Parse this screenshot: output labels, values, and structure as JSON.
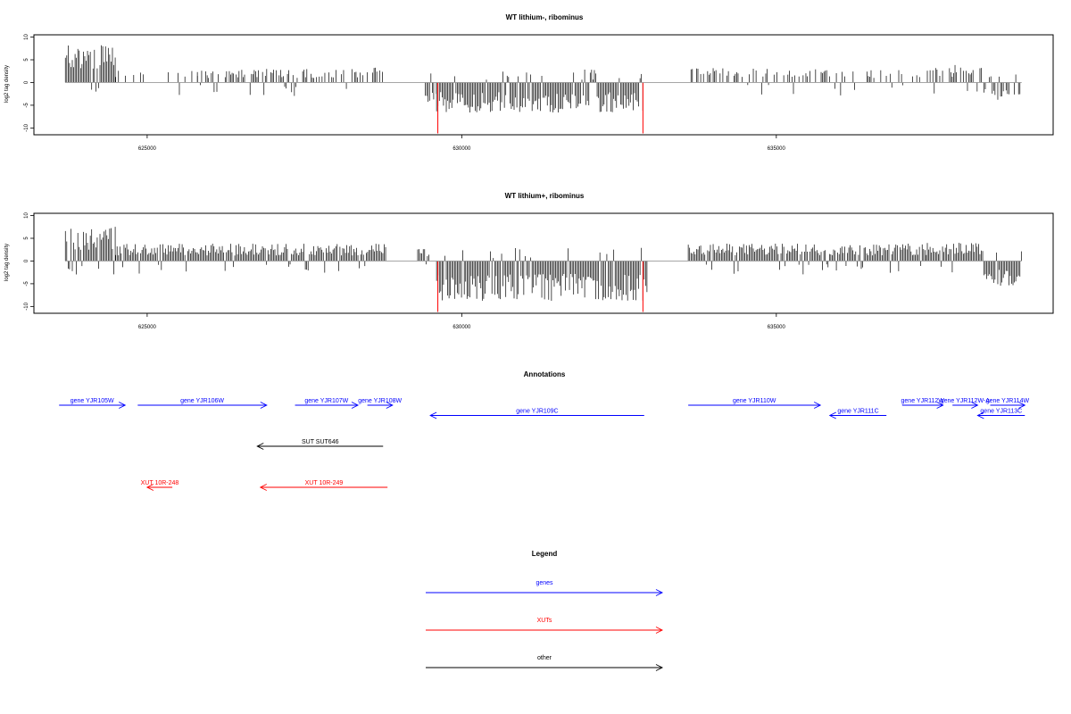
{
  "colors": {
    "genes": "#0000ff",
    "xuts": "#ff0000",
    "other": "#000000",
    "marker": "#ff0000",
    "bar": "#000000"
  },
  "chart_data": [
    {
      "type": "bar",
      "title": "WT lithium-, ribominus",
      "ylabel": "log2 tag density",
      "xlim": [
        623200,
        639400
      ],
      "ylim": [
        -11.5,
        10.5
      ],
      "yticks": [
        10,
        5,
        0,
        -5,
        -10
      ],
      "xticks": [
        625000,
        630000,
        635000
      ],
      "xtick_labels": [
        "625000",
        "630000",
        "635000"
      ],
      "ytick_labels": [
        "10",
        "5",
        "0",
        "-5",
        "-10"
      ],
      "red_markers": [
        629620,
        632880
      ],
      "coverage_regions": [
        {
          "from": 623700,
          "to": 624500,
          "level": 7.5,
          "density": 1.0
        },
        {
          "from": 624500,
          "to": 625800,
          "level": 2.5,
          "density": 0.25
        },
        {
          "from": 625800,
          "to": 628100,
          "level": 2.8,
          "density": 0.5
        },
        {
          "from": 628100,
          "to": 628800,
          "level": 3.0,
          "density": 0.4
        },
        {
          "from": 629400,
          "to": 629600,
          "level": -4.0,
          "density": 0.6
        },
        {
          "from": 629600,
          "to": 632900,
          "level": -6.0,
          "density": 1.0
        },
        {
          "from": 633600,
          "to": 636000,
          "level": 3.0,
          "density": 0.5
        },
        {
          "from": 636000,
          "to": 637400,
          "level": 2.5,
          "density": 0.3
        },
        {
          "from": 637400,
          "to": 638300,
          "level": 3.5,
          "density": 0.7
        },
        {
          "from": 638300,
          "to": 638900,
          "level": -3.5,
          "density": 0.7
        }
      ]
    },
    {
      "type": "bar",
      "title": "WT lithium+, ribominus",
      "ylabel": "log2 tag density",
      "xlim": [
        623200,
        639400
      ],
      "ylim": [
        -11.5,
        10.5
      ],
      "yticks": [
        10,
        5,
        0,
        -5,
        -10
      ],
      "xticks": [
        625000,
        630000,
        635000
      ],
      "xtick_labels": [
        "625000",
        "630000",
        "635000"
      ],
      "ytick_labels": [
        "10",
        "5",
        "0",
        "-5",
        "-10"
      ],
      "red_markers": [
        629620,
        632880
      ],
      "coverage_regions": [
        {
          "from": 623700,
          "to": 624500,
          "level": 7.0,
          "density": 1.0
        },
        {
          "from": 624500,
          "to": 628800,
          "level": 3.5,
          "density": 1.0
        },
        {
          "from": 629300,
          "to": 629600,
          "level": 2.5,
          "density": 0.6
        },
        {
          "from": 629600,
          "to": 632950,
          "level": -8.0,
          "density": 1.0
        },
        {
          "from": 633600,
          "to": 637400,
          "level": 3.5,
          "density": 1.0
        },
        {
          "from": 637400,
          "to": 638300,
          "level": 4.0,
          "density": 1.0
        },
        {
          "from": 638300,
          "to": 638900,
          "level": -5.0,
          "density": 1.0
        }
      ]
    }
  ],
  "annotations": {
    "title": "Annotations",
    "items": [
      {
        "label": "gene YJR105W",
        "kind": "genes",
        "start": 623600,
        "end": 624650,
        "strand": "+",
        "row": 0
      },
      {
        "label": "gene YJR106W",
        "kind": "genes",
        "start": 624850,
        "end": 626900,
        "strand": "+",
        "row": 0
      },
      {
        "label": "gene YJR107W",
        "kind": "genes",
        "start": 627350,
        "end": 628350,
        "strand": "+",
        "row": 0
      },
      {
        "label": "gene YJR108W",
        "kind": "genes",
        "start": 628500,
        "end": 628900,
        "strand": "+",
        "row": 0
      },
      {
        "label": "gene YJR109C",
        "kind": "genes",
        "start": 629500,
        "end": 632900,
        "strand": "-",
        "row": 1
      },
      {
        "label": "gene YJR110W",
        "kind": "genes",
        "start": 633600,
        "end": 635700,
        "strand": "+",
        "row": 0
      },
      {
        "label": "gene YJR111C",
        "kind": "genes",
        "start": 635850,
        "end": 636750,
        "strand": "-",
        "row": 1
      },
      {
        "label": "gene YJR112W",
        "kind": "genes",
        "start": 637000,
        "end": 637650,
        "strand": "+",
        "row": 0
      },
      {
        "label": "gene YJR112W-A",
        "kind": "genes",
        "start": 637800,
        "end": 638200,
        "strand": "+",
        "row": 0
      },
      {
        "label": "gene YJR114W",
        "kind": "genes",
        "start": 638400,
        "end": 638950,
        "strand": "+",
        "row": 0
      },
      {
        "label": "gene YJR113C",
        "kind": "genes",
        "start": 638200,
        "end": 638950,
        "strand": "-",
        "row": 1
      },
      {
        "label": "SUT SUT646",
        "kind": "other",
        "start": 626750,
        "end": 628750,
        "strand": "-",
        "row": 4
      },
      {
        "label": "XUT 10R-248",
        "kind": "xuts",
        "start": 625000,
        "end": 625400,
        "strand": "-",
        "row": 8
      },
      {
        "label": "XUT 10R-249",
        "kind": "xuts",
        "start": 626800,
        "end": 628820,
        "strand": "-",
        "row": 8
      }
    ]
  },
  "legend": {
    "title": "Legend",
    "items": [
      {
        "label": "genes",
        "kind": "genes"
      },
      {
        "label": "XUTs",
        "kind": "xuts"
      },
      {
        "label": "other",
        "kind": "other"
      }
    ]
  }
}
